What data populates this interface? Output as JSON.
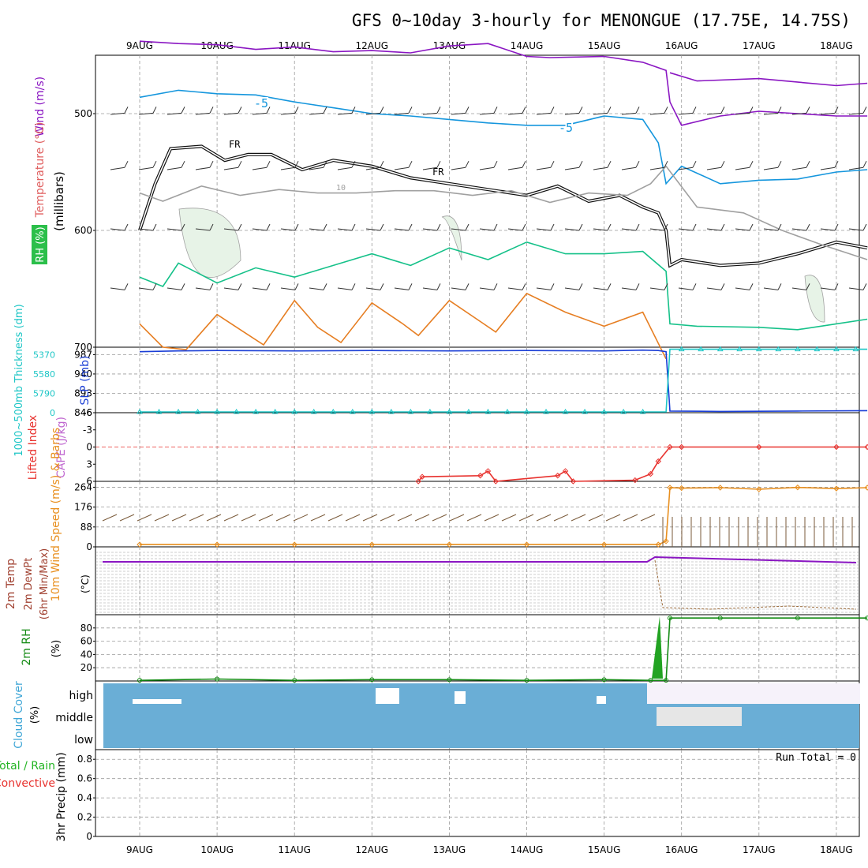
{
  "title": "GFS 0~10day 3-hourly for MENONGUE (17.75E, 14.75S)",
  "colors": {
    "grid": "#9a9a9a",
    "axis": "#000000",
    "purple": "#8a16c2",
    "blue_iso": "#1596dd",
    "green_iso": "#15c189",
    "orange_iso": "#e67e22",
    "black_fr": "#111111",
    "gray_rh": "#a0a0a0",
    "rh_fill": "#e7f3e7",
    "slp": "#1a3ed6",
    "thickness": "#1ec6c6",
    "lifted": "#e8322e",
    "wind10": "#e88f1f",
    "barb": "#7a5a3a",
    "rh2m": "#138a13",
    "cloud_fill": "#6aaed6",
    "cloud_gap": "#e6e6e6"
  },
  "chart_data": {
    "type": "line",
    "x_dates": [
      "9AUG",
      "10AUG",
      "11AUG",
      "12AUG",
      "13AUG",
      "14AUG",
      "15AUG",
      "16AUG",
      "17AUG",
      "18AUG"
    ],
    "panels": [
      {
        "id": "upper_air",
        "type": "line",
        "ylabel_parts": [
          "Wind (m/s)",
          "Temperature (°C)",
          "RH (%)"
        ],
        "y_axis_label": "(millibars)",
        "y_ticks": [
          "500",
          "600",
          "700"
        ],
        "ylim": [
          700,
          450
        ],
        "labels": [
          "-5",
          "-5",
          "FR",
          "FR",
          "10"
        ],
        "series": [
          {
            "color": "#8a16c2",
            "x": [
              0.0,
              0.5,
              1.0,
              1.5,
              2.0,
              2.5,
              3.0,
              3.5,
              4.0,
              4.5,
              5.0,
              5.3,
              6.0,
              6.5,
              6.8,
              6.85,
              7.0,
              7.5,
              8.0,
              8.5,
              9.0,
              9.4
            ],
            "y": [
              438,
              440,
              441,
              445,
              443,
              447,
              446,
              448,
              442,
              440,
              451,
              452,
              451,
              456,
              463,
              490,
              510,
              502,
              498,
              500,
              502,
              502
            ]
          },
          {
            "color": "#8a16c2",
            "x": [
              6.85,
              7.2,
              8.0,
              9.0,
              9.4
            ],
            "y": [
              465,
              472,
              470,
              476,
              474
            ]
          },
          {
            "color": "#1596dd",
            "x": [
              0.0,
              0.5,
              1.0,
              1.5,
              2.0,
              2.5,
              3.0,
              3.5,
              4.0,
              4.5,
              5.0,
              5.5,
              6.0,
              6.5,
              6.7,
              6.8,
              7.0,
              7.5,
              8.0,
              8.5,
              9.0,
              9.4
            ],
            "y": [
              486,
              480,
              483,
              484,
              490,
              495,
              500,
              502,
              505,
              508,
              510,
              510,
              502,
              505,
              525,
              560,
              545,
              560,
              557,
              556,
              550,
              548
            ]
          },
          {
            "color": "#15c189",
            "x": [
              0.0,
              0.3,
              0.5,
              1.0,
              1.5,
              2.0,
              2.5,
              3.0,
              3.5,
              4.0,
              4.5,
              5.0,
              5.5,
              6.0,
              6.5,
              6.8,
              6.85,
              7.2,
              8.0,
              8.5,
              9.0,
              9.4
            ],
            "y": [
              640,
              648,
              628,
              645,
              632,
              640,
              630,
              620,
              630,
              615,
              625,
              610,
              620,
              620,
              618,
              635,
              680,
              682,
              683,
              685,
              680,
              676
            ]
          },
          {
            "color": "#e67e22",
            "x": [
              0.0,
              0.3,
              0.6,
              1.0,
              1.3,
              1.6,
              2.0,
              2.3,
              2.6,
              3.0,
              3.4,
              3.6,
              4.0,
              4.4,
              4.6,
              5.0,
              5.5,
              6.0,
              6.5,
              6.8
            ],
            "y": [
              680,
              700,
              702,
              672,
              685,
              698,
              660,
              683,
              696,
              662,
              680,
              690,
              660,
              678,
              687,
              654,
              670,
              682,
              670,
              710
            ]
          },
          {
            "color": "#111111",
            "double": true,
            "x": [
              0.0,
              0.2,
              0.4,
              0.8,
              1.1,
              1.4,
              1.7,
              2.1,
              2.5,
              3.0,
              3.5,
              4.0,
              4.5,
              5.0,
              5.4,
              5.8,
              6.2,
              6.5,
              6.7,
              6.8,
              6.85,
              7.0,
              7.5,
              8.0,
              8.5,
              9.0,
              9.4
            ],
            "y": [
              600,
              560,
              530,
              528,
              540,
              535,
              535,
              548,
              540,
              545,
              555,
              560,
              565,
              570,
              562,
              575,
              570,
              580,
              585,
              600,
              630,
              625,
              630,
              628,
              620,
              610,
              615
            ]
          },
          {
            "color": "#a0a0a0",
            "x": [
              0.0,
              0.3,
              0.8,
              1.3,
              1.8,
              2.3,
              2.8,
              3.3,
              3.8,
              4.3,
              4.8,
              5.3,
              5.8,
              6.3,
              6.6,
              6.8,
              7.2,
              7.8,
              8.3,
              8.8,
              9.4
            ],
            "y": [
              568,
              575,
              562,
              570,
              565,
              568,
              568,
              566,
              566,
              570,
              566,
              576,
              568,
              570,
              560,
              545,
              580,
              585,
              600,
              612,
              625
            ]
          }
        ]
      },
      {
        "id": "slp_thickness",
        "type": "line",
        "ylabel": "SLP (mb)",
        "ylabel2": "1000~500mb Thickness (dm)",
        "y_ticks": [
          "987",
          "940",
          "893",
          "846"
        ],
        "y_ticks_right_axis_label": [
          "5370",
          "5580",
          "5790",
          "0"
        ],
        "ylim": [
          846,
          1005
        ],
        "series": [
          {
            "name": "SLP (mb)",
            "color": "#1a3ed6",
            "x": [
              0.0,
              0.5,
              1.0,
              2.0,
              3.0,
              4.0,
              5.0,
              6.0,
              6.5,
              6.7,
              6.8,
              6.85,
              7.5,
              8.5,
              9.4
            ],
            "y": [
              994,
              996,
              997,
              996,
              997,
              996,
              997,
              996,
              998,
              997,
              994,
              850,
              849,
              850,
              851
            ]
          },
          {
            "name": "1000~500mb Thickness (dm)",
            "color": "#1ec6c6",
            "x": [
              0.0,
              6.7,
              6.8,
              6.85,
              7.5,
              8.5,
              9.4
            ],
            "y": [
              848,
              848,
              848,
              1000,
              1000,
              1000,
              1000
            ]
          }
        ]
      },
      {
        "id": "cape_lifted",
        "type": "line",
        "ylabel": "CAPE (J/kg)",
        "ylabel2": "Lifted Index",
        "y_ticks": [
          "-6",
          "-3",
          "0",
          "3",
          "6"
        ],
        "ylim": [
          6,
          -6
        ],
        "series": [
          {
            "name": "Lifted Index",
            "color": "#e8322e",
            "x": [
              3.6,
              3.65,
              4.4,
              4.5,
              4.6,
              5.4,
              5.5,
              5.6,
              6.4,
              6.6,
              6.7,
              6.85,
              7.0,
              8.0,
              9.0,
              9.4
            ],
            "y": [
              6,
              5.2,
              5.0,
              4.2,
              6,
              5.0,
              4.2,
              6,
              5.8,
              4.7,
              2.5,
              0,
              0,
              0,
              0,
              0
            ]
          }
        ]
      },
      {
        "id": "wind10m",
        "type": "line",
        "ylabel": "10m Wind Speed (m/s) & Barbs",
        "y_ticks": [
          "264",
          "176",
          "88",
          "0"
        ],
        "ylim": [
          0,
          290
        ],
        "series": [
          {
            "name": "10m Wind",
            "color": "#e88f1f",
            "x": [
              0.0,
              1.0,
              2.0,
              3.0,
              4.0,
              5.0,
              6.0,
              6.7,
              6.8,
              6.85,
              7.0,
              7.5,
              8.0,
              8.5,
              9.0,
              9.4
            ],
            "y": [
              10,
              10,
              10,
              10,
              10,
              10,
              10,
              10,
              25,
              262,
              260,
              262,
              255,
              263,
              258,
              262
            ]
          }
        ]
      },
      {
        "id": "temp2m",
        "type": "line",
        "ylabel": "2m Temp",
        "ylabel2": "2m DewPt",
        "ylabel3": "(6hr Min/Max)",
        "y_unit": "(°C)"
      },
      {
        "id": "rh2m",
        "type": "line",
        "ylabel": "2m RH",
        "y_unit": "(%)",
        "y_ticks": [
          "80",
          "60",
          "40",
          "20"
        ],
        "ylim": [
          0,
          100
        ],
        "series": [
          {
            "name": "2m RH",
            "color": "#138a13",
            "x": [
              0.0,
              1.0,
              2.0,
              3.0,
              4.0,
              5.0,
              6.0,
              6.6,
              6.8,
              6.85,
              7.5,
              8.5,
              9.4
            ],
            "y": [
              1,
              3,
              1,
              2,
              2,
              1,
              2,
              1,
              1,
              95,
              95,
              95,
              95
            ]
          }
        ]
      },
      {
        "id": "cloud",
        "type": "area",
        "ylabel": "Cloud Cover",
        "y_unit": "(%)",
        "levels": [
          "high",
          "middle",
          "low"
        ]
      },
      {
        "id": "precip",
        "type": "bar",
        "ylabel": "3hr Precip (mm)",
        "legend_parts": [
          "Total / Rain",
          "Convective"
        ],
        "y_ticks": [
          "0.8",
          "0.6",
          "0.4",
          "0.2",
          "0"
        ],
        "ylim": [
          0,
          0.9
        ],
        "annotation": "Run Total = 0",
        "values": []
      }
    ]
  }
}
